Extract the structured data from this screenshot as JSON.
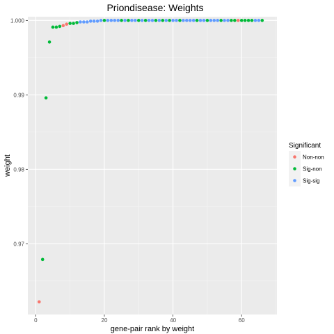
{
  "chart_data": {
    "type": "scatter",
    "title": "Priondisease: Weights",
    "xlabel": "gene-pair rank by weight",
    "ylabel": "weight",
    "xlim": [
      -2.3,
      70.3
    ],
    "ylim": [
      0.9605,
      1.0005
    ],
    "xticks": [
      0,
      20,
      40,
      60
    ],
    "yticks": [
      0.97,
      0.98,
      0.99,
      1.0
    ],
    "ytick_labels": [
      "0.97",
      "0.98",
      "0.99",
      "1.000"
    ],
    "grid": true,
    "legend": {
      "title": "Significant",
      "position": "right",
      "entries": [
        {
          "name": "Non-non",
          "color": "#F8766D"
        },
        {
          "name": "Sig-non",
          "color": "#00BA38"
        },
        {
          "name": "Sig-sig",
          "color": "#619CFF"
        }
      ]
    },
    "series": [
      {
        "name": "Non-non",
        "color": "#F8766D",
        "x": [
          1,
          8,
          9,
          59
        ],
        "y": [
          0.9622,
          0.9993,
          0.9995,
          1.0
        ]
      },
      {
        "name": "Sig-non",
        "color": "#00BA38",
        "x": [
          2,
          3,
          4,
          5,
          6,
          7,
          10,
          11,
          12,
          20,
          25,
          27,
          30,
          32,
          35,
          37,
          39,
          42,
          47,
          50,
          54,
          57,
          58,
          60,
          61,
          62,
          63,
          66
        ],
        "y": [
          0.9679,
          0.9896,
          0.9971,
          0.9991,
          0.9991,
          0.9992,
          0.9996,
          0.9996,
          0.9997,
          1.0,
          1.0,
          1.0,
          1.0,
          1.0,
          1.0,
          1.0,
          1.0,
          1.0,
          1.0,
          1.0,
          1.0,
          1.0,
          1.0,
          1.0,
          1.0,
          1.0,
          1.0,
          1.0
        ]
      },
      {
        "name": "Sig-sig",
        "color": "#619CFF",
        "x": [
          13,
          14,
          15,
          16,
          17,
          18,
          19,
          21,
          22,
          23,
          24,
          26,
          28,
          29,
          31,
          33,
          34,
          36,
          38,
          40,
          41,
          43,
          44,
          45,
          46,
          48,
          49,
          51,
          52,
          53,
          55,
          56,
          64,
          65
        ],
        "y": [
          0.9998,
          0.9998,
          0.9998,
          0.9999,
          0.9999,
          0.9999,
          1.0,
          1.0,
          1.0,
          1.0,
          1.0,
          1.0,
          1.0,
          1.0,
          1.0,
          1.0,
          1.0,
          1.0,
          1.0,
          1.0,
          1.0,
          1.0,
          1.0,
          1.0,
          1.0,
          1.0,
          1.0,
          1.0,
          1.0,
          1.0,
          1.0,
          1.0,
          1.0,
          1.0
        ]
      }
    ]
  }
}
